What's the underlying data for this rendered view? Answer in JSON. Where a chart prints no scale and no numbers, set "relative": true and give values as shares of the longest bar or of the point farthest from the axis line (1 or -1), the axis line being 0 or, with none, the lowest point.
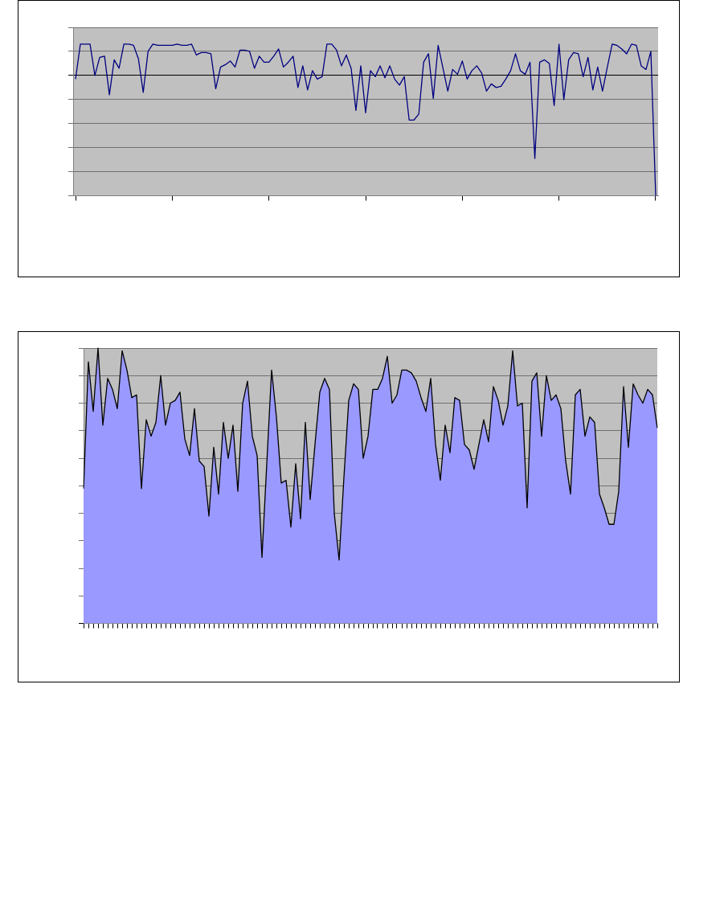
{
  "chart_data": [
    {
      "type": "line",
      "relative": true,
      "grid": "y",
      "color": "#000080",
      "categories": [
        null,
        null,
        null,
        null,
        null,
        null,
        null,
        null,
        null,
        null,
        null,
        null,
        null,
        null,
        null,
        null,
        null,
        null,
        null,
        null,
        null,
        null,
        null,
        null,
        null,
        null,
        null,
        null,
        null,
        null,
        null,
        null,
        null,
        null,
        null,
        null,
        null,
        null,
        null,
        null,
        null,
        null,
        null,
        null,
        null,
        null,
        null,
        null,
        null,
        null,
        null,
        null,
        null,
        null,
        null,
        null,
        null,
        null,
        null,
        null,
        null,
        null,
        null,
        null,
        null,
        null,
        null,
        null,
        null,
        null,
        null,
        null,
        null,
        null,
        null,
        null,
        null,
        null,
        null,
        null,
        null,
        null,
        null,
        null,
        null,
        null,
        null,
        null,
        null,
        null,
        null,
        null,
        null,
        null,
        null,
        null,
        null,
        null,
        null,
        null,
        null,
        null,
        null,
        null,
        null,
        null,
        null,
        null,
        null,
        null,
        null,
        null,
        null,
        null,
        null,
        null,
        null,
        null,
        null,
        null,
        null
      ],
      "values": [
        -0.03,
        0.26,
        0.26,
        0.26,
        0,
        0.15,
        0.16,
        -0.16,
        0.13,
        0.06,
        0.26,
        0.26,
        0.25,
        0.14,
        -0.14,
        0.2,
        0.26,
        0.25,
        0.25,
        0.25,
        0.25,
        0.26,
        0.25,
        0.25,
        0.26,
        0.17,
        0.19,
        0.19,
        0.18,
        -0.11,
        0.07,
        0.09,
        0.12,
        0.07,
        0.21,
        0.21,
        0.2,
        0.06,
        0.16,
        0.11,
        0.11,
        0.16,
        0.22,
        0.07,
        0.11,
        0.16,
        -0.1,
        0.08,
        -0.12,
        0.04,
        -0.03,
        -0.01,
        0.26,
        0.26,
        0.21,
        0.08,
        0.17,
        0.06,
        -0.29,
        0.08,
        -0.31,
        0.04,
        -0.01,
        0.08,
        -0.02,
        0.08,
        -0.03,
        -0.08,
        -0.01,
        -0.37,
        -0.37,
        -0.32,
        0.11,
        0.18,
        -0.19,
        0.25,
        0.06,
        -0.13,
        0.05,
        0.01,
        0.12,
        -0.03,
        0.04,
        0.08,
        0.02,
        -0.13,
        -0.07,
        -0.1,
        -0.09,
        -0.03,
        0.04,
        0.18,
        0.04,
        0.01,
        0.11,
        -0.69,
        0.11,
        0.13,
        0.1,
        -0.25,
        0.26,
        -0.2,
        0.13,
        0.19,
        0.18,
        -0.01,
        0.15,
        -0.12,
        0.07,
        -0.13,
        0.07,
        0.26,
        0.25,
        0.22,
        0.18,
        0.26,
        0.25,
        0.08,
        0.05,
        0.2,
        -1
      ]
    },
    {
      "type": "area",
      "relative": true,
      "grid": "y",
      "color": "#9999ff",
      "categories": [
        null,
        null,
        null,
        null,
        null,
        null,
        null,
        null,
        null,
        null,
        null,
        null,
        null,
        null,
        null,
        null,
        null,
        null,
        null,
        null,
        null,
        null,
        null,
        null,
        null,
        null,
        null,
        null,
        null,
        null,
        null,
        null,
        null,
        null,
        null,
        null,
        null,
        null,
        null,
        null,
        null,
        null,
        null,
        null,
        null,
        null,
        null,
        null,
        null,
        null,
        null,
        null,
        null,
        null,
        null,
        null,
        null,
        null,
        null,
        null,
        null,
        null,
        null,
        null,
        null,
        null,
        null,
        null,
        null,
        null,
        null,
        null,
        null,
        null,
        null,
        null,
        null,
        null,
        null,
        null,
        null,
        null,
        null,
        null,
        null,
        null,
        null,
        null,
        null,
        null,
        null,
        null,
        null,
        null,
        null,
        null,
        null,
        null,
        null,
        null,
        null,
        null,
        null,
        null,
        null,
        null,
        null,
        null,
        null,
        null,
        null,
        null,
        null,
        null,
        null,
        null,
        null,
        null,
        null,
        null
      ],
      "values": [
        0.49,
        0.95,
        0.77,
        1,
        0.72,
        0.89,
        0.85,
        0.78,
        0.99,
        0.92,
        0.82,
        0.83,
        0.49,
        0.74,
        0.68,
        0.73,
        0.9,
        0.72,
        0.8,
        0.81,
        0.84,
        0.67,
        0.61,
        0.78,
        0.59,
        0.57,
        0.39,
        0.64,
        0.47,
        0.73,
        0.6,
        0.72,
        0.48,
        0.8,
        0.88,
        0.68,
        0.61,
        0.24,
        0.58,
        0.92,
        0.75,
        0.51,
        0.52,
        0.35,
        0.58,
        0.38,
        0.73,
        0.45,
        0.65,
        0.84,
        0.89,
        0.85,
        0.4,
        0.23,
        0.53,
        0.81,
        0.87,
        0.85,
        0.6,
        0.68,
        0.85,
        0.85,
        0.89,
        0.97,
        0.8,
        0.83,
        0.92,
        0.92,
        0.91,
        0.88,
        0.82,
        0.77,
        0.89,
        0.65,
        0.52,
        0.72,
        0.62,
        0.82,
        0.81,
        0.65,
        0.63,
        0.56,
        0.65,
        0.74,
        0.66,
        0.86,
        0.81,
        0.72,
        0.79,
        0.99,
        0.79,
        0.8,
        0.42,
        0.88,
        0.91,
        0.68,
        0.9,
        0.81,
        0.83,
        0.78,
        0.59,
        0.47,
        0.83,
        0.85,
        0.68,
        0.75,
        0.73,
        0.47,
        0.42,
        0.36,
        0.36,
        0.48,
        0.86,
        0.64,
        0.87,
        0.83,
        0.8,
        0.85,
        0.83,
        0.71
      ]
    }
  ]
}
